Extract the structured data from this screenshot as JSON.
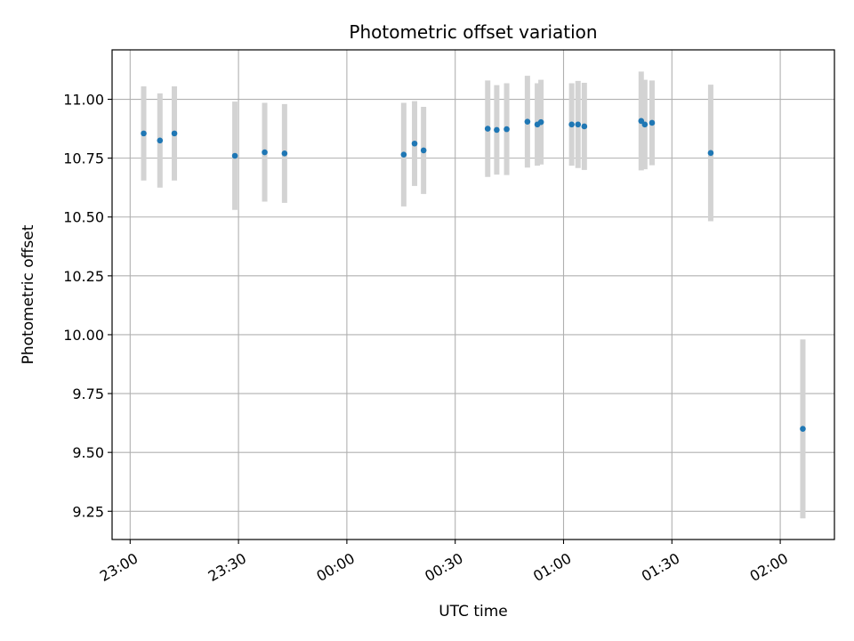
{
  "chart_data": {
    "type": "scatter",
    "title": "Photometric offset variation",
    "xlabel": "UTC time",
    "ylabel": "Photometric offset",
    "xlim": [
      "22:55:00",
      "26:15:00"
    ],
    "ylim": [
      9.13,
      11.21
    ],
    "grid": true,
    "x_tick_values": [
      "23:00:00",
      "23:30:00",
      "24:00:00",
      "24:30:00",
      "25:00:00",
      "25:30:00",
      "26:00:00"
    ],
    "x_tick_labels": [
      "23:00",
      "23:30",
      "00:00",
      "00:30",
      "01:00",
      "01:30",
      "02:00"
    ],
    "y_ticks": [
      9.25,
      9.5,
      9.75,
      10.0,
      10.25,
      10.5,
      10.75,
      11.0
    ],
    "y_tick_labels": [
      "9.25",
      "9.50",
      "9.75",
      "10.00",
      "10.25",
      "10.50",
      "10.75",
      "11.00"
    ],
    "point_color": "#1f77b4",
    "errorbar_color": "#d3d3d3",
    "points": [
      {
        "x": "23:03:45",
        "y": 10.855,
        "err": 0.2
      },
      {
        "x": "23:08:15",
        "y": 10.825,
        "err": 0.2
      },
      {
        "x": "23:12:15",
        "y": 10.855,
        "err": 0.2
      },
      {
        "x": "23:29:00",
        "y": 10.76,
        "err": 0.23
      },
      {
        "x": "23:37:15",
        "y": 10.775,
        "err": 0.21
      },
      {
        "x": "23:42:45",
        "y": 10.77,
        "err": 0.21
      },
      {
        "x": "24:15:45",
        "y": 10.765,
        "err": 0.22
      },
      {
        "x": "24:18:45",
        "y": 10.812,
        "err": 0.18
      },
      {
        "x": "24:21:15",
        "y": 10.783,
        "err": 0.185
      },
      {
        "x": "24:39:00",
        "y": 10.875,
        "err": 0.205
      },
      {
        "x": "24:41:30",
        "y": 10.87,
        "err": 0.19
      },
      {
        "x": "24:44:15",
        "y": 10.873,
        "err": 0.195
      },
      {
        "x": "24:50:00",
        "y": 10.905,
        "err": 0.195
      },
      {
        "x": "24:52:45",
        "y": 10.893,
        "err": 0.175
      },
      {
        "x": "24:53:45",
        "y": 10.903,
        "err": 0.18
      },
      {
        "x": "25:02:15",
        "y": 10.893,
        "err": 0.175
      },
      {
        "x": "25:04:00",
        "y": 10.893,
        "err": 0.185
      },
      {
        "x": "25:05:45",
        "y": 10.885,
        "err": 0.185
      },
      {
        "x": "25:21:30",
        "y": 10.908,
        "err": 0.21
      },
      {
        "x": "25:22:30",
        "y": 10.893,
        "err": 0.19
      },
      {
        "x": "25:24:30",
        "y": 10.9,
        "err": 0.18
      },
      {
        "x": "25:40:45",
        "y": 10.772,
        "err": 0.29
      },
      {
        "x": "26:06:15",
        "y": 9.6,
        "err": 0.38
      }
    ]
  }
}
